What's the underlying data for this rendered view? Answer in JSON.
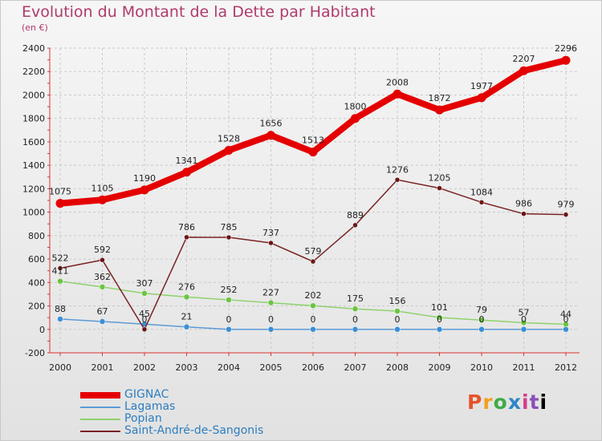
{
  "chart_data": {
    "type": "line",
    "title": "Evolution du Montant de la Dette par Habitant",
    "subtitle": "(en €)",
    "x": [
      "2000",
      "2001",
      "2002",
      "2003",
      "2004",
      "2005",
      "2006",
      "2007",
      "2008",
      "2009",
      "2010",
      "2011",
      "2012"
    ],
    "ylim": [
      -200,
      2400
    ],
    "yticks": [
      -200,
      0,
      200,
      400,
      600,
      800,
      1000,
      1200,
      1400,
      1600,
      1800,
      2000,
      2200,
      2400
    ],
    "grid": true,
    "series": [
      {
        "name": "GIGNAC",
        "color": "#e50000",
        "values": [
          1075,
          1105,
          1190,
          1341,
          1528,
          1656,
          1513,
          1800,
          2008,
          1872,
          1977,
          2207,
          2296
        ]
      },
      {
        "name": "Lagamas",
        "color": "#5b9bd5",
        "values": [
          88,
          67,
          45,
          21,
          0,
          0,
          0,
          0,
          0,
          0,
          0,
          0,
          0
        ]
      },
      {
        "name": "Popian",
        "color": "#8ed26b",
        "values": [
          411,
          362,
          307,
          276,
          252,
          227,
          202,
          175,
          156,
          101,
          79,
          57,
          44
        ]
      },
      {
        "name": "Saint-André-de-Sangonis",
        "color": "#7a2222",
        "values": [
          522,
          592,
          0,
          786,
          785,
          737,
          579,
          889,
          1276,
          1205,
          1084,
          986,
          979
        ]
      }
    ]
  },
  "logo": {
    "letters": [
      "P",
      "r",
      "o",
      "x",
      "i",
      "t",
      "i"
    ]
  }
}
